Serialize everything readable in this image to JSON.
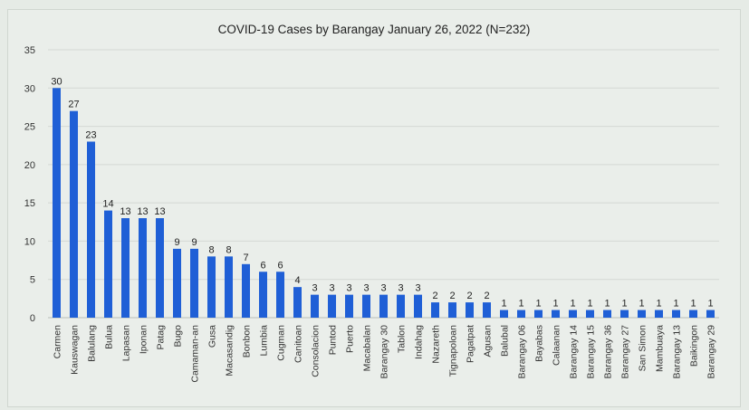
{
  "chart_data": {
    "type": "bar",
    "title": "COVID-19 Cases by Barangay January 26, 2022 (N=232)",
    "xlabel": "",
    "ylabel": "",
    "ylim": [
      0,
      35
    ],
    "yticks": [
      0,
      5,
      10,
      15,
      20,
      25,
      30,
      35
    ],
    "grid": true,
    "bar_color": "#1f5fd6",
    "categories": [
      "Carmen",
      "Kauswagan",
      "Balulang",
      "Bulua",
      "Lapasan",
      "Iponan",
      "Patag",
      "Bugo",
      "Camaman-an",
      "Gusa",
      "Macasandig",
      "Bonbon",
      "Lumbia",
      "Cugman",
      "Canitoan",
      "Consolacion",
      "Puntod",
      "Puerto",
      "Macabalan",
      "Barangay 30",
      "Tablon",
      "Indahag",
      "Nazareth",
      "Tignapoloan",
      "Pagatpat",
      "Agusan",
      "Balubal",
      "Barangay 06",
      "Bayabas",
      "Calaanan",
      "Barangay 14",
      "Barangay 15",
      "Barangay 36",
      "Barangay 27",
      "San Simon",
      "Mambuaya",
      "Barangay 13",
      "Baikingon",
      "Barangay 29"
    ],
    "values": [
      30,
      27,
      23,
      14,
      13,
      13,
      13,
      9,
      9,
      8,
      8,
      7,
      6,
      6,
      4,
      3,
      3,
      3,
      3,
      3,
      3,
      3,
      2,
      2,
      2,
      2,
      1,
      1,
      1,
      1,
      1,
      1,
      1,
      1,
      1,
      1,
      1,
      1,
      1
    ]
  }
}
